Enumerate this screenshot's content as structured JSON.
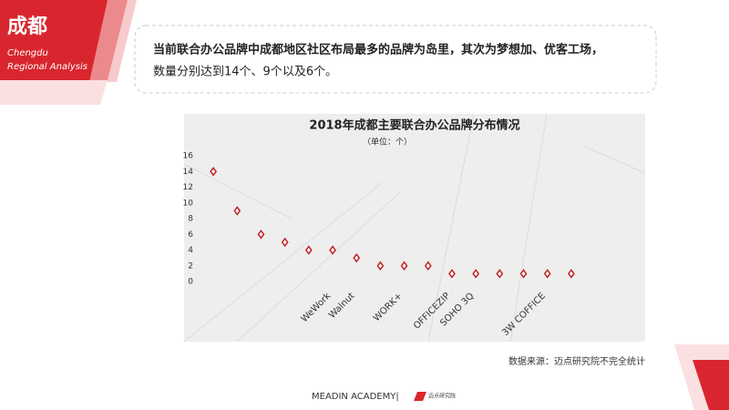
{
  "header": {
    "title": "成都",
    "subtitle_line1": "Chengdu",
    "subtitle_line2": "Regional Analysis"
  },
  "callout": {
    "line1": "当前联合办公品牌中成都地区社区布局最多的品牌为岛里，其次为梦想加、优客工场，",
    "line2": "数量分别达到14个、9个以及6个。"
  },
  "chart_data": {
    "type": "scatter",
    "title": "2018年成都主要联合办公品牌分布情况",
    "subtitle": "（单位：个）",
    "categories": [
      null,
      null,
      null,
      null,
      null,
      "WeWork",
      "Walnut",
      null,
      "WORK+",
      null,
      "OFFICEZIP",
      "SOHO 3Q",
      null,
      null,
      "3W COFFICE",
      null
    ],
    "values": [
      14,
      9,
      6,
      5,
      4,
      4,
      3,
      2,
      2,
      2,
      1,
      1,
      1,
      1,
      1,
      1
    ],
    "color": "#c0262d",
    "ylim": [
      0,
      16
    ],
    "yticks": [
      0,
      2,
      4,
      6,
      8,
      10,
      12,
      14,
      16
    ],
    "grid": false
  },
  "source": "数据来源：迈点研究院不完全统计",
  "footer": {
    "brand": "MEADIN ACADEMY|",
    "logo": "迈点研究院"
  }
}
